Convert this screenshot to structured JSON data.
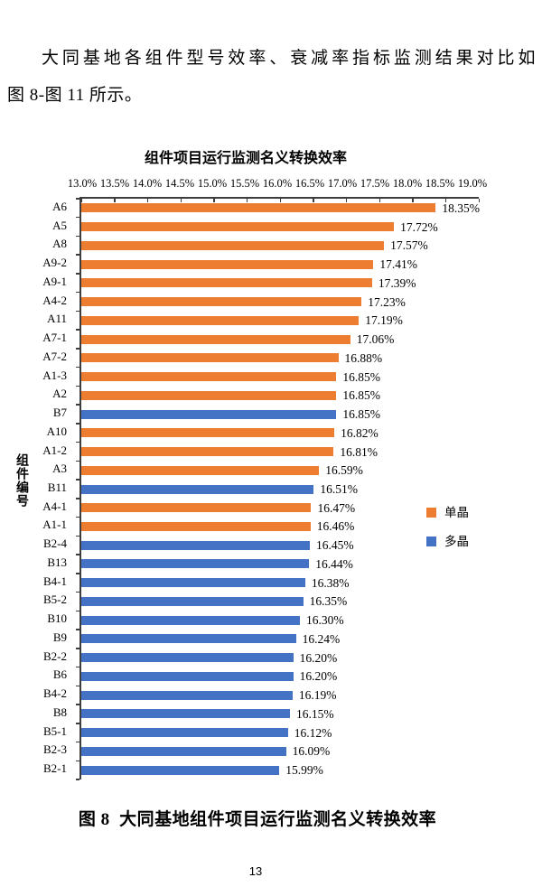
{
  "document": {
    "paragraph_lines": [
      "大同基地各组件型号效率、衰减率指标监测结果对比如",
      "图 8-图 11 所示。"
    ],
    "caption": "图 8  大同基地组件项目运行监测名义转换效率",
    "page_number": "13"
  },
  "chart_data": {
    "type": "bar",
    "orientation": "horizontal",
    "title": "组件项目运行监测名义转换效率",
    "ylabel": "组件编号",
    "xlabel": "",
    "xlim": [
      13.0,
      19.0
    ],
    "xtick_labels": [
      "13.0%",
      "13.5%",
      "14.0%",
      "14.5%",
      "15.0%",
      "15.5%",
      "16.0%",
      "16.5%",
      "17.0%",
      "17.5%",
      "18.0%",
      "18.5%",
      "19.0%"
    ],
    "grid": false,
    "legend": {
      "position": "right",
      "items": [
        {
          "label": "单晶",
          "color": "#ED7D31"
        },
        {
          "label": "多晶",
          "color": "#4472C4"
        }
      ]
    },
    "bars": [
      {
        "label": "A6",
        "value": 18.35,
        "display": "18.35%",
        "series": "单晶"
      },
      {
        "label": "A5",
        "value": 17.72,
        "display": "17.72%",
        "series": "单晶"
      },
      {
        "label": "A8",
        "value": 17.57,
        "display": "17.57%",
        "series": "单晶"
      },
      {
        "label": "A9-2",
        "value": 17.41,
        "display": "17.41%",
        "series": "单晶"
      },
      {
        "label": "A9-1",
        "value": 17.39,
        "display": "17.39%",
        "series": "单晶"
      },
      {
        "label": "A4-2",
        "value": 17.23,
        "display": "17.23%",
        "series": "单晶"
      },
      {
        "label": "A11",
        "value": 17.19,
        "display": "17.19%",
        "series": "单晶"
      },
      {
        "label": "A7-1",
        "value": 17.06,
        "display": "17.06%",
        "series": "单晶"
      },
      {
        "label": "A7-2",
        "value": 16.88,
        "display": "16.88%",
        "series": "单晶"
      },
      {
        "label": "A1-3",
        "value": 16.85,
        "display": "16.85%",
        "series": "单晶"
      },
      {
        "label": "A2",
        "value": 16.85,
        "display": "16.85%",
        "series": "单晶"
      },
      {
        "label": "B7",
        "value": 16.85,
        "display": "16.85%",
        "series": "多晶"
      },
      {
        "label": "A10",
        "value": 16.82,
        "display": "16.82%",
        "series": "单晶"
      },
      {
        "label": "A1-2",
        "value": 16.81,
        "display": "16.81%",
        "series": "单晶"
      },
      {
        "label": "A3",
        "value": 16.59,
        "display": "16.59%",
        "series": "单晶"
      },
      {
        "label": "B11",
        "value": 16.51,
        "display": "16.51%",
        "series": "多晶"
      },
      {
        "label": "A4-1",
        "value": 16.47,
        "display": "16.47%",
        "series": "单晶"
      },
      {
        "label": "A1-1",
        "value": 16.46,
        "display": "16.46%",
        "series": "单晶"
      },
      {
        "label": "B2-4",
        "value": 16.45,
        "display": "16.45%",
        "series": "多晶"
      },
      {
        "label": "B13",
        "value": 16.44,
        "display": "16.44%",
        "series": "多晶"
      },
      {
        "label": "B4-1",
        "value": 16.38,
        "display": "16.38%",
        "series": "多晶"
      },
      {
        "label": "B5-2",
        "value": 16.35,
        "display": "16.35%",
        "series": "多晶"
      },
      {
        "label": "B10",
        "value": 16.3,
        "display": "16.30%",
        "series": "多晶"
      },
      {
        "label": "B9",
        "value": 16.24,
        "display": "16.24%",
        "series": "多晶"
      },
      {
        "label": "B2-2",
        "value": 16.2,
        "display": "16.20%",
        "series": "多晶"
      },
      {
        "label": "B6",
        "value": 16.2,
        "display": "16.20%",
        "series": "多晶"
      },
      {
        "label": "B4-2",
        "value": 16.19,
        "display": "16.19%",
        "series": "多晶"
      },
      {
        "label": "B8",
        "value": 16.15,
        "display": "16.15%",
        "series": "多晶"
      },
      {
        "label": "B5-1",
        "value": 16.12,
        "display": "16.12%",
        "series": "多晶"
      },
      {
        "label": "B2-3",
        "value": 16.09,
        "display": "16.09%",
        "series": "多晶"
      },
      {
        "label": "B2-1",
        "value": 15.99,
        "display": "15.99%",
        "series": "多晶"
      }
    ]
  }
}
